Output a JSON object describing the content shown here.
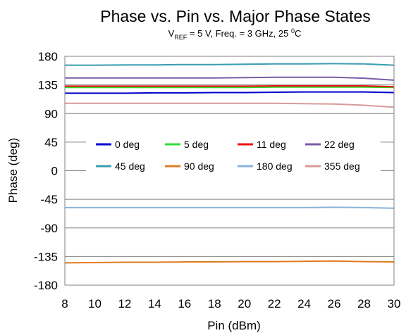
{
  "chart_data": {
    "type": "line",
    "title": "Phase vs. Pin vs. Major Phase States",
    "subtitle": {
      "v": "V",
      "ref": "REF",
      "rest": " = 5 V, Freq. = 3 GHz, 25 ",
      "deg_sup": "0",
      "unit": "C"
    },
    "xlabel": "Pin (dBm)",
    "ylabel": "Phase (deg)",
    "xlim": [
      8,
      30
    ],
    "ylim": [
      -180,
      180
    ],
    "xticks": [
      "8",
      "10",
      "12",
      "14",
      "16",
      "18",
      "20",
      "22",
      "24",
      "26",
      "28",
      "30"
    ],
    "yticks": [
      "180",
      "135",
      "90",
      "45",
      "0",
      "-45",
      "-90",
      "-135",
      "-180"
    ],
    "grid": "horizontal",
    "legend_position": "center",
    "x": [
      8,
      10,
      12,
      14,
      16,
      18,
      20,
      22,
      24,
      26,
      28,
      30
    ],
    "series": [
      {
        "name": "0 deg",
        "color": "#0000cc",
        "values": [
          122,
          122,
          122,
          122.5,
          122.5,
          123,
          123,
          123.5,
          124,
          124,
          124,
          123
        ]
      },
      {
        "name": "5 deg",
        "color": "#33dd33",
        "values": [
          131,
          131,
          131,
          131,
          131,
          131,
          131,
          131.5,
          131.5,
          131.5,
          131.5,
          131
        ]
      },
      {
        "name": "11 deg",
        "color": "#ee1111",
        "values": [
          133,
          133,
          133,
          133,
          133,
          133,
          133,
          133.5,
          133.5,
          133.5,
          133.5,
          132
        ]
      },
      {
        "name": "22 deg",
        "color": "#7b5aa6",
        "values": [
          146,
          146,
          146,
          146,
          146,
          146,
          146.5,
          147,
          147,
          147,
          145.5,
          142.5
        ]
      },
      {
        "name": "45 deg",
        "color": "#3a9cb0",
        "values": [
          166,
          166,
          166.5,
          166.5,
          167,
          167,
          167.5,
          168,
          168,
          168.5,
          168,
          166
        ]
      },
      {
        "name": "90 deg",
        "color": "#e07b22",
        "values": [
          -145,
          -144.5,
          -144,
          -144,
          -143.5,
          -143.5,
          -143,
          -143,
          -142.5,
          -142,
          -143,
          -143.5
        ]
      },
      {
        "name": "180 deg",
        "color": "#8bb2d9",
        "values": [
          -58,
          -58,
          -58,
          -58,
          -58,
          -58,
          -58,
          -58,
          -58,
          -57.5,
          -58,
          -59
        ]
      },
      {
        "name": "355 deg",
        "color": "#d99a9a",
        "values": [
          106,
          106,
          106,
          106,
          106,
          106,
          106,
          106,
          105.5,
          105,
          103,
          100
        ]
      }
    ]
  }
}
